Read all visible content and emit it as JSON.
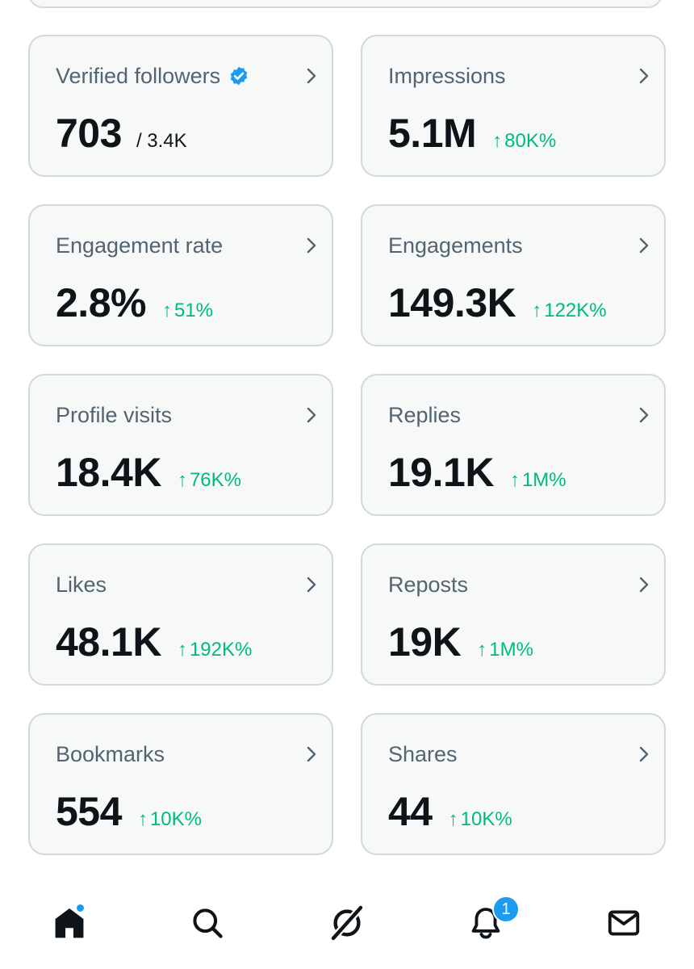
{
  "cards": [
    {
      "label": "Verified followers",
      "value": "703",
      "total": "/ 3.4K",
      "verified": true
    },
    {
      "label": "Impressions",
      "value": "5.1M",
      "change": "80K%"
    },
    {
      "label": "Engagement rate",
      "value": "2.8%",
      "change": "51%"
    },
    {
      "label": "Engagements",
      "value": "149.3K",
      "change": "122K%"
    },
    {
      "label": "Profile visits",
      "value": "18.4K",
      "change": "76K%"
    },
    {
      "label": "Replies",
      "value": "19.1K",
      "change": "1M%"
    },
    {
      "label": "Likes",
      "value": "48.1K",
      "change": "192K%"
    },
    {
      "label": "Reposts",
      "value": "19K",
      "change": "1M%"
    },
    {
      "label": "Bookmarks",
      "value": "554",
      "change": "10K%"
    },
    {
      "label": "Shares",
      "value": "44",
      "change": "10K%"
    }
  ],
  "colors": {
    "positive": "#00ba7c",
    "accent": "#1d9bf0",
    "label": "#536471",
    "value": "#0f1419",
    "card_bg": "#f7f9f9",
    "card_border": "#cfd9de"
  },
  "icons": {
    "up_arrow": "↑",
    "verified": "verified-badge-icon",
    "chevron": "chevron-right-icon"
  },
  "nav": {
    "items": [
      {
        "name": "home",
        "icon": "home-icon",
        "has_dot": true
      },
      {
        "name": "search",
        "icon": "search-icon"
      },
      {
        "name": "grok",
        "icon": "grok-icon"
      },
      {
        "name": "notifications",
        "icon": "bell-icon",
        "badge": "1"
      },
      {
        "name": "messages",
        "icon": "mail-icon"
      }
    ]
  }
}
